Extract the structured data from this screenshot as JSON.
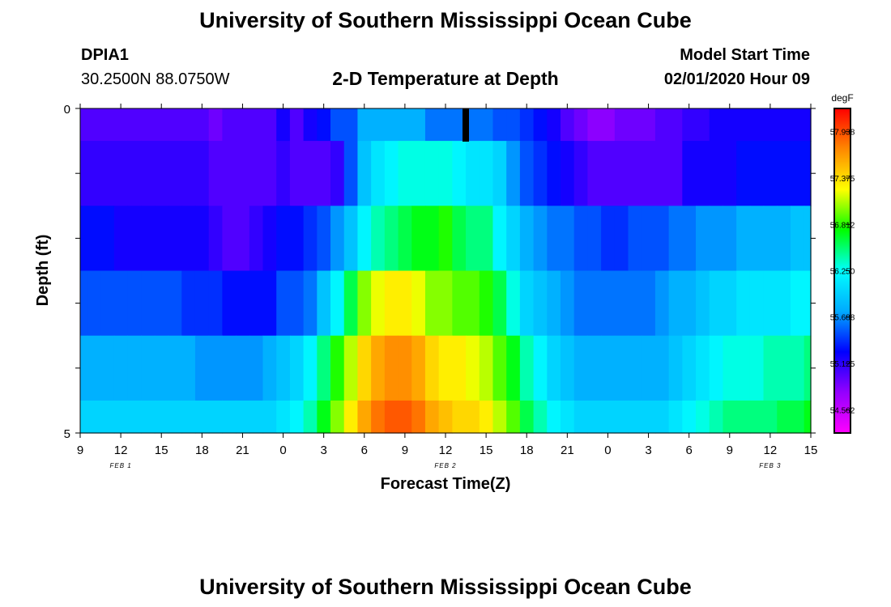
{
  "header": {
    "title": "University of Southern Mississippi Ocean Cube",
    "station": "DPIA1",
    "coords": "30.2500N 88.0750W",
    "plot_title": "2-D Temperature at Depth",
    "model_label": "Model Start Time",
    "model_time": "02/01/2020 Hour 09"
  },
  "footer": {
    "title": "University of Southern Mississippi Ocean Cube"
  },
  "chart_data": {
    "type": "heatmap",
    "xlabel": "Forecast Time(Z)",
    "ylabel": "Depth (ft)",
    "x_tick_labels": [
      "9",
      "12",
      "15",
      "18",
      "21",
      "0",
      "3",
      "6",
      "9",
      "12",
      "15",
      "18",
      "21",
      "0",
      "3",
      "6",
      "9",
      "12",
      "15"
    ],
    "day_labels": [
      "FEB 1",
      "FEB 2",
      "FEB 3"
    ],
    "y_tick_labels": [
      "0",
      "5"
    ],
    "ylim": [
      0,
      5
    ],
    "x_range_hours": [
      0,
      54
    ],
    "colorbar": {
      "unit": "degF",
      "ticks": [
        "57.938",
        "57.375",
        "56.812",
        "56.250",
        "55.688",
        "55.125",
        "54.562"
      ],
      "range": [
        54.28,
        58.22
      ]
    },
    "colors": [
      "#ff00ff",
      "#9400ff",
      "#0000ff",
      "#00aaff",
      "#00ffff",
      "#00ff00",
      "#ffff00",
      "#ff8800",
      "#ff0000"
    ],
    "depth_bands": [
      0,
      0.5,
      1.5,
      2.5,
      3.5,
      4.5,
      5
    ],
    "hours": [
      0,
      1,
      2,
      3,
      4,
      5,
      6,
      7,
      8,
      9,
      10,
      11,
      12,
      13,
      14,
      15,
      16,
      17,
      18,
      19,
      20,
      21,
      22,
      23,
      24,
      25,
      26,
      27,
      28,
      29,
      30,
      31,
      32,
      33,
      34,
      35,
      36,
      37,
      38,
      39,
      40,
      41,
      42,
      43,
      44,
      45,
      46,
      47,
      48,
      49,
      50,
      51,
      52,
      53,
      54
    ],
    "temperature_degF": [
      [
        55.0,
        55.0,
        55.0,
        55.0,
        55.0,
        55.0,
        55.0,
        55.0,
        55.0,
        55.0,
        54.9,
        55.0,
        55.0,
        55.0,
        55.0,
        55.2,
        55.0,
        55.2,
        55.3,
        55.5,
        55.5,
        55.8,
        55.8,
        55.8,
        55.8,
        55.8,
        55.6,
        55.6,
        55.6,
        55.6,
        55.6,
        55.5,
        55.5,
        55.4,
        55.3,
        55.2,
        55.0,
        54.9,
        54.8,
        54.8,
        54.9,
        54.9,
        54.9,
        55.0,
        55.0,
        55.1,
        55.1,
        55.2,
        55.2,
        55.2,
        55.2,
        55.2,
        55.2,
        55.2,
        55.2
      ],
      [
        55.1,
        55.1,
        55.1,
        55.1,
        55.1,
        55.1,
        55.1,
        55.1,
        55.1,
        55.1,
        55.0,
        55.0,
        55.0,
        55.0,
        55.0,
        55.1,
        55.0,
        55.0,
        55.0,
        55.1,
        55.5,
        55.9,
        56.1,
        56.2,
        56.3,
        56.3,
        56.3,
        56.3,
        56.2,
        56.1,
        56.1,
        56.0,
        55.7,
        55.5,
        55.4,
        55.3,
        55.2,
        55.1,
        55.0,
        55.0,
        55.0,
        55.0,
        55.0,
        55.0,
        55.0,
        55.2,
        55.2,
        55.2,
        55.2,
        55.3,
        55.3,
        55.3,
        55.3,
        55.3,
        55.3
      ],
      [
        55.3,
        55.3,
        55.3,
        55.2,
        55.2,
        55.2,
        55.2,
        55.2,
        55.2,
        55.2,
        55.1,
        55.0,
        55.0,
        55.1,
        55.2,
        55.3,
        55.3,
        55.4,
        55.5,
        55.7,
        55.9,
        56.2,
        56.4,
        56.5,
        56.6,
        56.7,
        56.7,
        56.8,
        56.6,
        56.5,
        56.5,
        56.2,
        56.0,
        55.8,
        55.7,
        55.6,
        55.6,
        55.5,
        55.5,
        55.4,
        55.4,
        55.5,
        55.5,
        55.5,
        55.6,
        55.6,
        55.7,
        55.7,
        55.7,
        55.8,
        55.8,
        55.8,
        55.8,
        55.9,
        55.9
      ],
      [
        55.5,
        55.5,
        55.5,
        55.5,
        55.5,
        55.5,
        55.5,
        55.5,
        55.4,
        55.4,
        55.4,
        55.3,
        55.3,
        55.3,
        55.3,
        55.5,
        55.5,
        55.6,
        55.9,
        56.2,
        56.6,
        57.0,
        57.2,
        57.3,
        57.3,
        57.2,
        57.0,
        57.0,
        56.9,
        56.9,
        56.8,
        56.6,
        56.3,
        56.0,
        55.9,
        55.8,
        55.7,
        55.6,
        55.6,
        55.6,
        55.6,
        55.6,
        55.6,
        55.7,
        55.8,
        55.8,
        55.9,
        56.0,
        56.0,
        56.1,
        56.1,
        56.1,
        56.1,
        56.2,
        56.2
      ],
      [
        55.8,
        55.8,
        55.8,
        55.8,
        55.8,
        55.8,
        55.8,
        55.8,
        55.8,
        55.7,
        55.7,
        55.7,
        55.7,
        55.7,
        55.8,
        55.9,
        56.0,
        56.2,
        56.5,
        56.8,
        57.1,
        57.4,
        57.6,
        57.7,
        57.7,
        57.6,
        57.4,
        57.3,
        57.3,
        57.2,
        57.1,
        56.9,
        56.7,
        56.4,
        56.2,
        56.0,
        55.9,
        55.8,
        55.8,
        55.8,
        55.8,
        55.8,
        55.8,
        55.8,
        55.9,
        56.0,
        56.1,
        56.2,
        56.3,
        56.3,
        56.3,
        56.4,
        56.4,
        56.4,
        56.5
      ],
      [
        56.0,
        56.0,
        56.0,
        56.0,
        56.0,
        56.0,
        56.0,
        56.0,
        56.0,
        56.0,
        56.0,
        56.0,
        56.0,
        56.0,
        56.0,
        56.1,
        56.2,
        56.4,
        56.7,
        57.0,
        57.3,
        57.6,
        57.8,
        57.9,
        57.9,
        57.8,
        57.6,
        57.5,
        57.4,
        57.4,
        57.3,
        57.1,
        56.9,
        56.6,
        56.4,
        56.2,
        56.1,
        56.0,
        56.0,
        56.0,
        56.0,
        56.0,
        56.0,
        56.0,
        56.1,
        56.2,
        56.3,
        56.4,
        56.5,
        56.5,
        56.5,
        56.5,
        56.6,
        56.6,
        56.7
      ]
    ]
  }
}
